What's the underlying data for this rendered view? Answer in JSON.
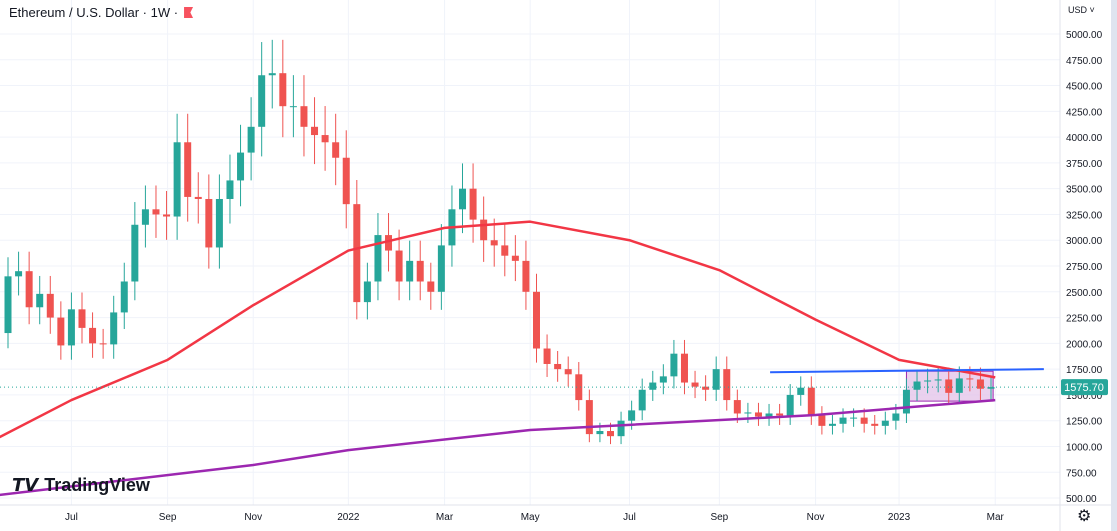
{
  "header": {
    "title": "Ethereum / U.S. Dollar · 1W ·",
    "currency": "USD ˅"
  },
  "logo": {
    "text": "TradingView"
  },
  "colors": {
    "up": "#26a69a",
    "down": "#ef5350",
    "ma50": "#f23645",
    "ma200": "#9c27b0",
    "resistance": "#2962ff",
    "range_fill": "#e1bee7"
  },
  "chart_data": {
    "type": "candlestick",
    "title": "Ethereum / U.S. Dollar · 1W",
    "ylim": [
      500,
      5000
    ],
    "y_ticks": [
      "5000.00",
      "4750.00",
      "4500.00",
      "4250.00",
      "4000.00",
      "3750.00",
      "3500.00",
      "3250.00",
      "3000.00",
      "2750.00",
      "2500.00",
      "2250.00",
      "2000.00",
      "1750.00",
      "1500.00",
      "1250.00",
      "1000.00",
      "750.00",
      "500.00"
    ],
    "x_ticks": [
      {
        "label": "Jul",
        "week": 6
      },
      {
        "label": "Sep",
        "week": 15.1
      },
      {
        "label": "Nov",
        "week": 23.2
      },
      {
        "label": "2022",
        "week": 32.2
      },
      {
        "label": "Mar",
        "week": 41.3
      },
      {
        "label": "May",
        "week": 49.4
      },
      {
        "label": "Jul",
        "week": 58.8
      },
      {
        "label": "Sep",
        "week": 67.3
      },
      {
        "label": "Nov",
        "week": 76.4
      },
      {
        "label": "2023",
        "week": 84.3
      },
      {
        "label": "Mar",
        "week": 93.4
      }
    ],
    "first_open": 2100,
    "closes": [
      2650,
      2700,
      2350,
      2480,
      2250,
      1980,
      2330,
      2150,
      2000,
      1990,
      2300,
      2600,
      3150,
      3300,
      3250,
      3230,
      3950,
      3420,
      3400,
      2930,
      3400,
      3580,
      3850,
      4100,
      4600,
      4620,
      4300,
      4300,
      4100,
      4020,
      3950,
      3800,
      3350,
      2400,
      2600,
      3050,
      2900,
      2600,
      2800,
      2600,
      2500,
      2950,
      3300,
      3500,
      3200,
      3000,
      2950,
      2850,
      2800,
      2500,
      1950,
      1800,
      1750,
      1700,
      1450,
      1120,
      1150,
      1100,
      1250,
      1350,
      1550,
      1620,
      1680,
      1900,
      1620,
      1580,
      1550,
      1750,
      1450,
      1320,
      1330,
      1290,
      1320,
      1300,
      1500,
      1570,
      1300,
      1200,
      1220,
      1280,
      1280,
      1220,
      1200,
      1250,
      1320,
      1550,
      1630,
      1640,
      1650,
      1520,
      1660,
      1650,
      1560,
      1575.7
    ],
    "ma50": [
      [
        -0.8,
        1090
      ],
      [
        6,
        1450
      ],
      [
        15.1,
        1840
      ],
      [
        23.2,
        2370
      ],
      [
        32.2,
        2900
      ],
      [
        41.3,
        3120
      ],
      [
        49.4,
        3180
      ],
      [
        58.8,
        3000
      ],
      [
        67.3,
        2710
      ],
      [
        76.4,
        2230
      ],
      [
        84.3,
        1840
      ],
      [
        93.4,
        1670
      ]
    ],
    "ma200": [
      [
        -0.8,
        530
      ],
      [
        23.2,
        820
      ],
      [
        32.2,
        965
      ],
      [
        49.4,
        1160
      ],
      [
        58.8,
        1210
      ],
      [
        76.4,
        1305
      ],
      [
        93.4,
        1450
      ]
    ],
    "resistance": [
      [
        72.1,
        1720
      ],
      [
        98,
        1750
      ]
    ],
    "range_box": {
      "from_week": 85,
      "to_week": 93.2,
      "top": 1730,
      "bottom": 1440
    },
    "last_price": "1575.70",
    "last_value": 1575.7
  }
}
